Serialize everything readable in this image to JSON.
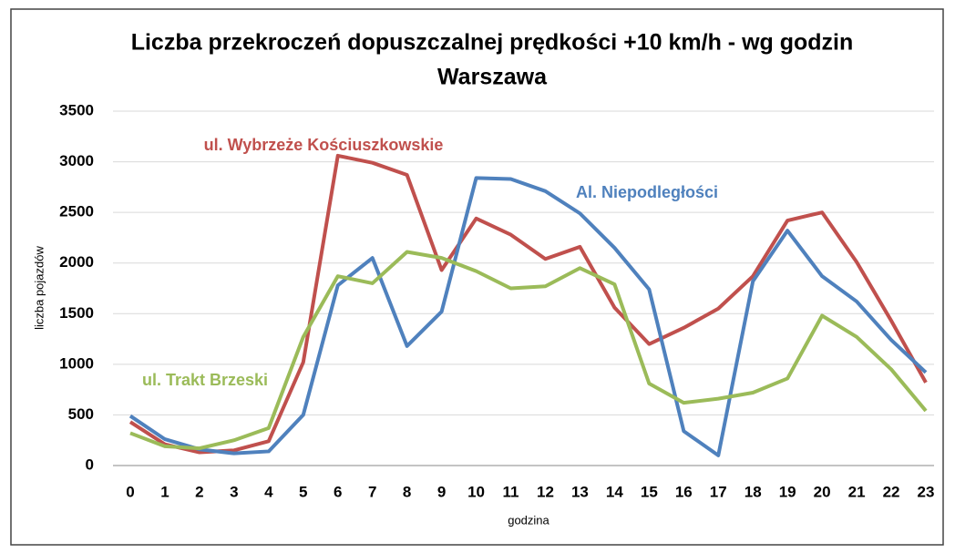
{
  "chart_data": {
    "type": "line",
    "title": "Liczba przekroczeń dopuszczalnej prędkości +10 km/h - wg godzin",
    "subtitle": "Warszawa",
    "x_label": "godzina",
    "y_label": "liczba pojazdów",
    "categories": [
      "0",
      "1",
      "2",
      "3",
      "4",
      "5",
      "6",
      "7",
      "8",
      "9",
      "10",
      "11",
      "12",
      "13",
      "14",
      "15",
      "16",
      "17",
      "18",
      "19",
      "20",
      "21",
      "22",
      "23"
    ],
    "series": [
      {
        "name": "ul. Wybrzeże Kościuszkowskie",
        "color": "#c0504d",
        "values": [
          430,
          210,
          130,
          150,
          240,
          1020,
          3060,
          2990,
          2870,
          1930,
          2440,
          2280,
          2040,
          2160,
          1560,
          1200,
          1360,
          1550,
          1870,
          2420,
          2500,
          2010,
          1430,
          820
        ]
      },
      {
        "name": "Al. Niepodległości",
        "color": "#4f81bd",
        "values": [
          490,
          260,
          160,
          120,
          140,
          500,
          1780,
          2050,
          1180,
          1520,
          2840,
          2830,
          2710,
          2490,
          2150,
          1740,
          340,
          100,
          1820,
          2320,
          1870,
          1620,
          1240,
          920
        ]
      },
      {
        "name": "ul. Trakt Brzeski",
        "color": "#9bbb59",
        "values": [
          320,
          190,
          170,
          250,
          370,
          1270,
          1870,
          1800,
          2110,
          2050,
          1920,
          1750,
          1770,
          1950,
          1790,
          810,
          620,
          660,
          720,
          860,
          1480,
          1270,
          950,
          540
        ]
      }
    ],
    "ylim": [
      0,
      3500
    ],
    "yticks": [
      0,
      500,
      1000,
      1500,
      2000,
      2500,
      3000,
      3500
    ],
    "grid": true
  }
}
